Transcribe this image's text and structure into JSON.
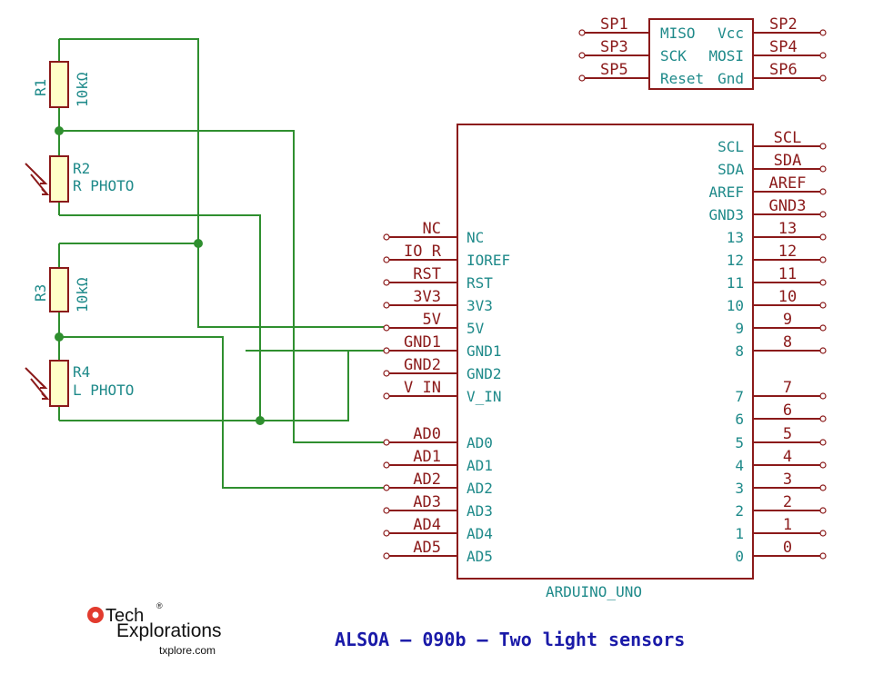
{
  "title": "ALSOA – 090b – Two light sensors",
  "resistors": [
    {
      "ref": "R1",
      "value": "10kΩ"
    },
    {
      "ref": "R2",
      "value": "R PHOTO"
    },
    {
      "ref": "R3",
      "value": "10kΩ"
    },
    {
      "ref": "R4",
      "value": "L PHOTO"
    }
  ],
  "icsp": {
    "left_nets": [
      "SP1",
      "SP3",
      "SP5"
    ],
    "right_nets": [
      "SP2",
      "SP4",
      "SP6"
    ],
    "left_pins": [
      "MISO",
      "SCK",
      "Reset"
    ],
    "right_pins": [
      "Vcc",
      "MOSI",
      "Gnd"
    ]
  },
  "arduino": {
    "name": "ARDUINO_UNO",
    "left_nets": [
      "NC",
      "IO_R",
      "RST",
      "3V3",
      "5V",
      "GND1",
      "GND2",
      "V_IN",
      "AD0",
      "AD1",
      "AD2",
      "AD3",
      "AD4",
      "AD5"
    ],
    "left_pins": [
      "NC",
      "IOREF",
      "RST",
      "3V3",
      "5V",
      "GND1",
      "GND2",
      "V_IN",
      "AD0",
      "AD1",
      "AD2",
      "AD3",
      "AD4",
      "AD5"
    ],
    "right_pins": [
      "SCL",
      "SDA",
      "AREF",
      "GND3",
      "13",
      "12",
      "11",
      "10",
      "9",
      "8",
      "7",
      "6",
      "5",
      "4",
      "3",
      "2",
      "1",
      "0"
    ],
    "right_nets": [
      "SCL",
      "SDA",
      "AREF",
      "GND3",
      "13",
      "12",
      "11",
      "10",
      "9",
      "8",
      "7",
      "6",
      "5",
      "4",
      "3",
      "2",
      "1",
      "0"
    ]
  },
  "logo": {
    "line1": "Tech",
    "line2": "Explorations",
    "url": "txplore.com",
    "mark": "®"
  }
}
